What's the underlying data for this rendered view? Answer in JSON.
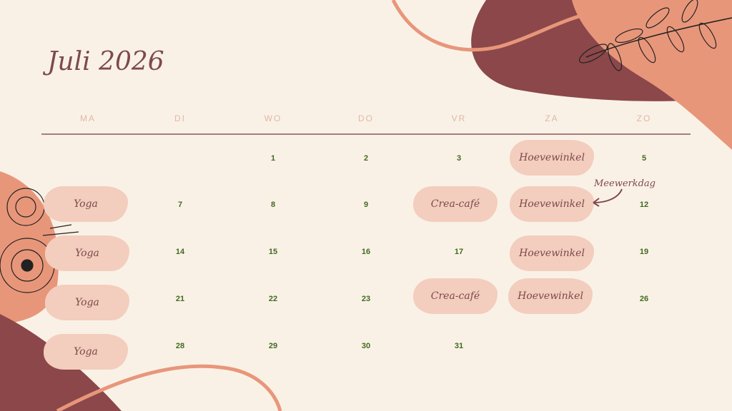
{
  "title": "Juli 2026",
  "weekdays": [
    "MA",
    "DI",
    "WO",
    "DO",
    "VR",
    "ZA",
    "ZO"
  ],
  "colors": {
    "background": "#faf1e6",
    "dark_blob": "#8b474a",
    "salmon_blob": "#e8967a",
    "event_blob": "#f3cdbd",
    "day_number": "#3f6b20",
    "text": "#7d4a4c"
  },
  "days": [
    "1",
    "2",
    "3",
    "5",
    "7",
    "8",
    "9",
    "12",
    "14",
    "15",
    "16",
    "17",
    "19",
    "21",
    "22",
    "23",
    "26",
    "28",
    "29",
    "30",
    "31"
  ],
  "events": [
    "Hoevewinkel",
    "Yoga",
    "Crea-café",
    "Hoevewinkel",
    "Yoga",
    "Hoevewinkel",
    "Yoga",
    "Crea-café",
    "Hoevewinkel",
    "Yoga"
  ],
  "annotation": "Meewerkdag"
}
